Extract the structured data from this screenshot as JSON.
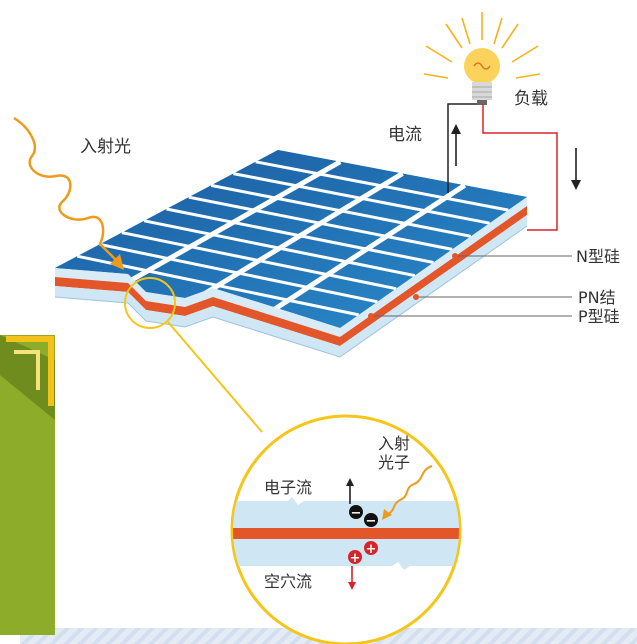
{
  "labels": {
    "incident_light": "入射光",
    "load": "负载",
    "current": "电流",
    "n_silicon": "N型硅",
    "pn_junction": "PN结",
    "p_silicon": "P型硅"
  },
  "zoom": {
    "incident_photon_line1": "入射",
    "incident_photon_line2": "光子",
    "electron_flow": "电子流",
    "hole_flow": "空穴流",
    "electron_symbol": "−",
    "hole_symbol": "+"
  },
  "colors": {
    "panel_blue": "#1f6fb0",
    "junction": "#e2562a",
    "silicon": "#cfe6f4",
    "wire_red": "#d8232a",
    "wire_black": "#222222",
    "light_ray": "#f09a1c",
    "callout": "#f5c518",
    "green_block": "#8dac2a",
    "bulb": "#fbd35a"
  }
}
